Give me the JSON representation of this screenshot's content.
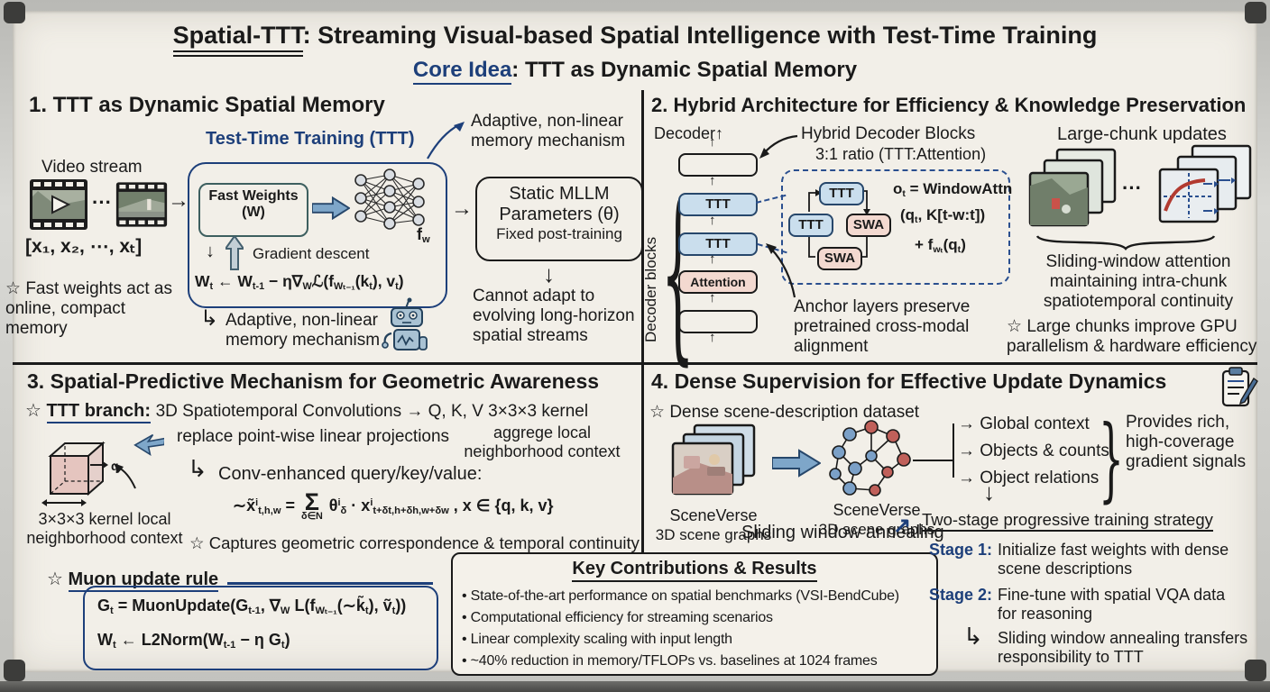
{
  "icons": {
    "star": "☆",
    "arrow_right": "→",
    "arrow_up": "↑",
    "arrow_down": "↓",
    "hook": "↳",
    "dots": "···",
    "ne_arrow": "↗",
    "bullet": "•",
    "brace_open": "{",
    "brace_close": "}",
    "cycle_down": "↓"
  },
  "header": {
    "title_lead": "Spatial-TTT",
    "title_rest": ": Streaming Visual-based Spatial Intelligence with Test-Time Training",
    "subtitle_lead": "Core Idea",
    "subtitle_rest": ": TTT as Dynamic Spatial Memory"
  },
  "s1": {
    "heading": "1. TTT as Dynamic Spatial Memory",
    "ttt_label": "Test-Time Training (TTT)",
    "video_label": "Video stream",
    "tokens": "[x₁, x₂, ⋯, xₜ]",
    "star_note": "Fast weights act as online, compact memory",
    "fast_weights_l1": "Fast Weights",
    "fast_weights_l2": "(W)",
    "fw": [
      {
        "t": "f"
      },
      {
        "s": "w"
      }
    ],
    "gradient_label": "Gradient descent",
    "update": [
      {
        "t": "W"
      },
      {
        "s": "t"
      },
      {
        "t": " ← W"
      },
      {
        "s": "t-1"
      },
      {
        "t": " − η∇"
      },
      {
        "s": "W"
      },
      {
        "t": "ℒ(f"
      },
      {
        "s": "Wₜ₋₁"
      },
      {
        "t": "(k"
      },
      {
        "s": "t"
      },
      {
        "t": "), v"
      },
      {
        "s": "t"
      },
      {
        "t": ")"
      }
    ],
    "adaptive_top": "Adaptive, non-linear memory mechanism",
    "adaptive_bottom": "Adaptive, non-linear memory mechanism",
    "static_l1": "Static MLLM",
    "static_l2": "Parameters (θ)",
    "static_l3": "Fixed post-training",
    "cannot": "Cannot adapt to evolving long-horizon spatial streams"
  },
  "s2": {
    "heading": "2. Hybrid Architecture for Efficiency & Knowledge Preservation",
    "decoder_label": "Decoder",
    "decoder_blocks": "Decoder blocks",
    "stack_ttt": "TTT",
    "stack_attention": "Attention",
    "hybrid_l1": "Hybrid Decoder Blocks",
    "hybrid_l2": "3:1 ratio (TTT:Attention)",
    "swa": "SWA",
    "f1": [
      {
        "t": "o"
      },
      {
        "s": "t"
      },
      {
        "t": " = WindowAttn"
      }
    ],
    "f2": [
      {
        "t": "(q"
      },
      {
        "s": "t"
      },
      {
        "t": ", K[t-w:t])"
      }
    ],
    "f3": [
      {
        "t": "+ f"
      },
      {
        "s": "wₜ"
      },
      {
        "t": "(q"
      },
      {
        "s": "t"
      },
      {
        "t": ")"
      }
    ],
    "anchor": "Anchor layers preserve pretrained cross-modal alignment",
    "chunk_label": "Large-chunk updates",
    "sliding": "Sliding-window attention maintaining intra-chunk spatiotemporal continuity",
    "gpu_note": "Large chunks improve GPU parallelism & hardware efficiency"
  },
  "s3": {
    "heading": "3. Spatial-Predictive Mechanism for Geometric Awareness",
    "branch_label": "TTT branch:",
    "branch_text": "3D Spatiotemporal Convolutions → Q, K, V 3×3×3 kernel",
    "sub1": "replace point-wise linear projections",
    "sub2": "aggrege local neighborhood context",
    "q_label": "q",
    "cube_label": "3×3×3 kernel local neighborhood context",
    "conv_label": "Conv-enhanced query/key/value:",
    "conv": [
      {
        "t": "∼x̃"
      },
      {
        "p": "i"
      },
      {
        "s": "t,h,w"
      },
      {
        "t": " = "
      },
      {
        "sum": "δ∈N"
      },
      {
        "t": " θ"
      },
      {
        "p": "i"
      },
      {
        "s": "δ"
      },
      {
        "t": " · x"
      },
      {
        "p": "i"
      },
      {
        "s": "t+δt,h+δh,w+δw"
      },
      {
        "t": " , x ∈ {q, k, v}"
      }
    ],
    "captures": "Captures geometric correspondence & temporal continuity",
    "muon_title": "Muon update rule",
    "muon1": [
      {
        "t": "G"
      },
      {
        "s": "t"
      },
      {
        "t": " = MuonUpdate(G"
      },
      {
        "s": "t-1"
      },
      {
        "t": ", ∇"
      },
      {
        "s": "W"
      },
      {
        "t": " L(f"
      },
      {
        "s": "Wₜ₋₁"
      },
      {
        "t": "(∼k̃"
      },
      {
        "s": "t"
      },
      {
        "t": "), ṽ"
      },
      {
        "s": "t"
      },
      {
        "t": "))"
      }
    ],
    "muon2": [
      {
        "t": "W"
      },
      {
        "s": "t"
      },
      {
        "t": " ← L2Norm(W"
      },
      {
        "s": "t-1"
      },
      {
        "t": " − η G"
      },
      {
        "s": "t"
      },
      {
        "t": ")"
      }
    ]
  },
  "contrib": {
    "title": "Key Contributions & Results",
    "bullets": [
      "State-of-the-art performance on spatial benchmarks (VSI-BendCube)",
      "Computational efficiency for streaming scenarios",
      "Linear complexity scaling with input length",
      "~40% reduction in memory/TFLOPs vs. baselines at 1024 frames"
    ]
  },
  "s4": {
    "heading": "4. Dense Supervision for Effective Update Dynamics",
    "dataset": "Dense scene-description dataset",
    "sv1a": "SceneVerse",
    "sv1b": "3D scene graphs",
    "sv2a": "SceneVerse",
    "sv2b": "3D scene graphs",
    "out0": "Global context",
    "out1": "Objects & counts",
    "out2": "Object relations",
    "provides": "Provides rich, high-coverage gradient signals",
    "strategy": "Two-stage progressive training strategy",
    "annealing": "Sliding window annealing",
    "stage1_label": "Stage 1:",
    "stage1_text": "Initialize fast weights with dense scene descriptions",
    "stage2_label": "Stage 2:",
    "stage2_text": "Fine-tune with spatial VQA data for reasoning",
    "stage2_sub": "Sliding window annealing transfers responsibility to TTT"
  }
}
